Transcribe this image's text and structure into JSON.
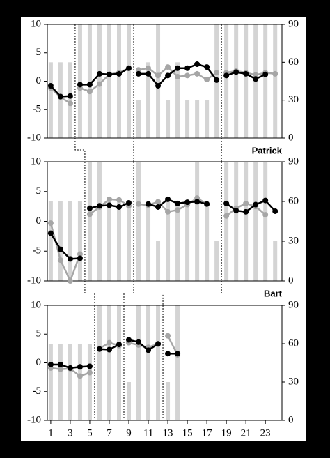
{
  "chart_data": [
    {
      "type": "bar-line",
      "label": "Patrick",
      "x": [
        1,
        2,
        3,
        4,
        5,
        6,
        7,
        8,
        9,
        10,
        11,
        12,
        13,
        14,
        15,
        16,
        17,
        18,
        19,
        20,
        21,
        22,
        23,
        24
      ],
      "xlim": [
        0.65,
        24.7
      ],
      "ylim": [
        -10,
        10
      ],
      "yticks": [
        -10,
        -5,
        0,
        5,
        10
      ],
      "y2lim": [
        0,
        90
      ],
      "y2ticks": [
        0,
        30,
        60,
        90
      ],
      "phase_changes": [
        3.5,
        9.5,
        18.5
      ],
      "series": [
        {
          "color": "#d4d4d4",
          "axis": "y2",
          "kind": "bar",
          "values": [
            60,
            60,
            60,
            90,
            90,
            90,
            90,
            90,
            90,
            30,
            60,
            90,
            30,
            60,
            30,
            30,
            30,
            90,
            90,
            90,
            90,
            90,
            90,
            90
          ]
        },
        {
          "color": "#a6a6a6",
          "kind": "line",
          "values": [
            -1.2,
            -2.8,
            -3.9,
            -1.2,
            -1.8,
            -0.5,
            1.2,
            1.5,
            2.3,
            2.0,
            2.3,
            1.0,
            2.5,
            0.8,
            1.0,
            1.3,
            0.3,
            1.5,
            1.5,
            1.8,
            1.5,
            1.1,
            1.5,
            1.3
          ]
        },
        {
          "color": "#000000",
          "kind": "line",
          "values": [
            -0.8,
            -2.7,
            -2.6,
            -0.6,
            -0.6,
            1.3,
            1.2,
            1.3,
            2.3,
            1.3,
            1.3,
            -0.8,
            1.0,
            2.3,
            2.3,
            3.0,
            2.5,
            0.2,
            1.0,
            1.6,
            1.3,
            0.4,
            1.2,
            null
          ]
        }
      ]
    },
    {
      "type": "bar-line",
      "label": "Bart",
      "x": [
        1,
        2,
        3,
        4,
        5,
        6,
        7,
        8,
        9,
        10,
        11,
        12,
        13,
        14,
        15,
        16,
        17,
        18,
        19,
        20,
        21,
        22,
        23,
        24
      ],
      "xlim": [
        0.65,
        24.7
      ],
      "ylim": [
        -10,
        10
      ],
      "yticks": [
        -10,
        -5,
        0,
        5,
        10
      ],
      "y2lim": [
        0,
        90
      ],
      "y2ticks": [
        0,
        30,
        60,
        90
      ],
      "phase_changes": [
        4.5,
        9.5,
        18.5
      ],
      "series": [
        {
          "color": "#d4d4d4",
          "axis": "y2",
          "kind": "bar",
          "values": [
            60,
            60,
            60,
            60,
            90,
            90,
            60,
            60,
            60,
            90,
            60,
            30,
            60,
            60,
            60,
            90,
            60,
            30,
            90,
            90,
            90,
            90,
            90,
            30
          ]
        },
        {
          "color": "#a6a6a6",
          "kind": "line",
          "values": [
            -0.3,
            -6.5,
            -10,
            -5.5,
            1.2,
            2.4,
            3.7,
            3.6,
            2.6,
            2.9,
            2.7,
            3.3,
            1.6,
            1.9,
            2.8,
            3.9,
            2.9,
            null,
            0.9,
            2.2,
            3.0,
            2.5,
            1.1,
            null
          ]
        },
        {
          "color": "#000000",
          "kind": "line",
          "values": [
            -2.0,
            -4.7,
            -6.3,
            -6.2,
            2.2,
            2.6,
            2.7,
            2.4,
            3.1,
            null,
            2.9,
            2.4,
            3.7,
            3.0,
            3.2,
            3.3,
            2.9,
            null,
            3.0,
            1.8,
            1.6,
            2.8,
            3.5,
            1.7
          ]
        }
      ]
    },
    {
      "type": "bar-line",
      "x": [
        1,
        2,
        3,
        4,
        5,
        6,
        7,
        8,
        9,
        10,
        11,
        12,
        13,
        14,
        15,
        16,
        17,
        18,
        19,
        20,
        21,
        22,
        23,
        24
      ],
      "xlim": [
        0.65,
        24.7
      ],
      "xticks": [
        1,
        3,
        5,
        7,
        9,
        11,
        13,
        15,
        17,
        19,
        21,
        23
      ],
      "ylim": [
        -10,
        10
      ],
      "yticks": [
        -10,
        -5,
        0,
        5,
        10
      ],
      "y2lim": [
        0,
        90
      ],
      "y2ticks": [
        0,
        30,
        60,
        90
      ],
      "phase_changes": [
        5.5,
        8.5,
        12.5
      ],
      "series": [
        {
          "color": "#d4d4d4",
          "axis": "y2",
          "kind": "bar",
          "values": [
            60,
            60,
            60,
            60,
            60,
            90,
            90,
            90,
            30,
            90,
            90,
            90,
            30,
            90,
            null,
            null,
            null,
            null,
            null,
            null,
            null,
            null,
            null,
            null
          ]
        },
        {
          "color": "#a6a6a6",
          "kind": "line",
          "values": [
            -0.9,
            -1.1,
            -1.0,
            -2.3,
            -1.7,
            2.5,
            3.5,
            3.0,
            3.5,
            3.1,
            2.7,
            3.3,
            4.7,
            1.4,
            null,
            null,
            null,
            null,
            null,
            null,
            null,
            null,
            null,
            null
          ]
        },
        {
          "color": "#000000",
          "kind": "line",
          "values": [
            -0.3,
            -0.3,
            -0.9,
            -0.7,
            -0.6,
            2.4,
            2.3,
            3.2,
            4.0,
            3.6,
            2.2,
            3.3,
            1.6,
            1.6,
            null,
            null,
            null,
            null,
            null,
            null,
            null,
            null,
            null,
            null
          ]
        }
      ]
    }
  ]
}
